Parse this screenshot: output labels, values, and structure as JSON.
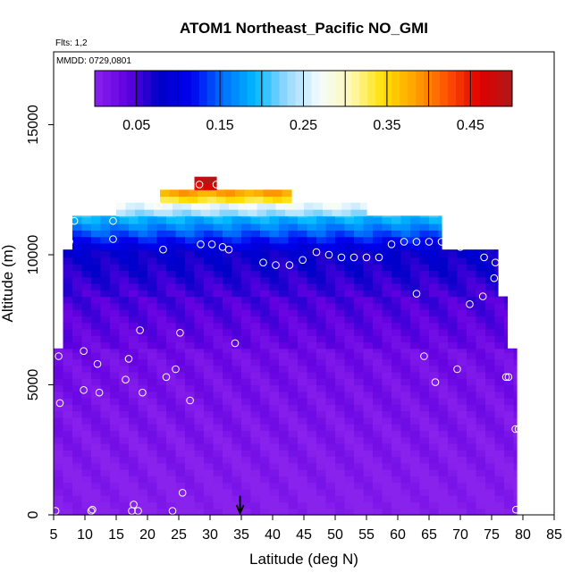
{
  "chart_data": {
    "type": "heatmap",
    "title": "ATOM1 Northeast_Pacific NO_GMI",
    "subtitle_flights": "Flts: 1,2",
    "subtitle_dates": "MMDD: 0729,0801",
    "xlabel": "Latitude (deg N)",
    "ylabel": "Altitude (m)",
    "xlim": [
      5,
      85
    ],
    "ylim": [
      0,
      17800
    ],
    "x_ticks": [
      5,
      10,
      15,
      20,
      25,
      30,
      35,
      40,
      45,
      50,
      55,
      60,
      65,
      70,
      75,
      80,
      85
    ],
    "y_ticks": [
      0,
      5000,
      10000,
      15000
    ],
    "colorbar": {
      "range": [
        0,
        0.5
      ],
      "tick_values": [
        0.05,
        0.15,
        0.25,
        0.35,
        0.45
      ],
      "tick_labels": [
        "0.05",
        "0.15",
        "0.25",
        "0.35",
        "0.45"
      ],
      "stops": [
        "#8a22ee",
        "#6200e0",
        "#0000c8",
        "#0000f0",
        "#0070ff",
        "#00b8ff",
        "#9ad8ff",
        "#f4fcff",
        "#fff8b0",
        "#ffe000",
        "#ffa000",
        "#ff5000",
        "#e00000",
        "#b01818"
      ]
    },
    "curtain_layers": [
      {
        "alt_range": [
          0,
          6400
        ],
        "lat_range": [
          5,
          79
        ],
        "value_bottom": 0.0,
        "value_top": 0.025
      },
      {
        "alt_range": [
          6400,
          8400
        ],
        "lat_range": [
          6.5,
          77.5
        ],
        "value_bottom": 0.03,
        "value_top": 0.05
      },
      {
        "alt_range": [
          8400,
          10200
        ],
        "lat_range": [
          6.5,
          76
        ],
        "value_bottom": 0.05,
        "value_top": 0.08
      },
      {
        "alt_range": [
          10200,
          11500
        ],
        "lat_range": [
          8,
          67
        ],
        "value_bottom": 0.09,
        "value_top": 0.2
      },
      {
        "alt_range": [
          11500,
          12000
        ],
        "lat_range": [
          15,
          55
        ],
        "value_bottom": 0.22,
        "value_top": 0.28
      },
      {
        "alt_range": [
          12000,
          12500
        ],
        "lat_range": [
          22,
          43
        ],
        "value_bottom": 0.32,
        "value_top": 0.4
      },
      {
        "alt_range": [
          12500,
          13000
        ],
        "lat_range": [
          27.5,
          31
        ],
        "value_bottom": 0.45,
        "value_top": 0.5
      }
    ],
    "flight_points": [
      {
        "lat": 5.3,
        "alt": 150
      },
      {
        "lat": 11,
        "alt": 150
      },
      {
        "lat": 11.2,
        "alt": 200
      },
      {
        "lat": 17.5,
        "alt": 150
      },
      {
        "lat": 17.8,
        "alt": 400
      },
      {
        "lat": 18.5,
        "alt": 150
      },
      {
        "lat": 24,
        "alt": 150
      },
      {
        "lat": 25.6,
        "alt": 850
      },
      {
        "lat": 6,
        "alt": 4300
      },
      {
        "lat": 9.8,
        "alt": 4800
      },
      {
        "lat": 12.3,
        "alt": 4700
      },
      {
        "lat": 19.2,
        "alt": 4700
      },
      {
        "lat": 16.5,
        "alt": 5200
      },
      {
        "lat": 23,
        "alt": 5300
      },
      {
        "lat": 24.5,
        "alt": 5600
      },
      {
        "lat": 26.8,
        "alt": 4400
      },
      {
        "lat": 5.8,
        "alt": 6100
      },
      {
        "lat": 9.8,
        "alt": 6300
      },
      {
        "lat": 12,
        "alt": 5800
      },
      {
        "lat": 17,
        "alt": 6000
      },
      {
        "lat": 18.8,
        "alt": 7100
      },
      {
        "lat": 25.2,
        "alt": 7000
      },
      {
        "lat": 34,
        "alt": 6600
      },
      {
        "lat": 64.2,
        "alt": 6100
      },
      {
        "lat": 66,
        "alt": 5100
      },
      {
        "lat": 69.5,
        "alt": 5600
      },
      {
        "lat": 77.3,
        "alt": 5300
      },
      {
        "lat": 77.7,
        "alt": 5300
      },
      {
        "lat": 78.8,
        "alt": 3300
      },
      {
        "lat": 79.3,
        "alt": 3300
      },
      {
        "lat": 78.9,
        "alt": 200
      },
      {
        "lat": 63,
        "alt": 8500
      },
      {
        "lat": 71.5,
        "alt": 8100
      },
      {
        "lat": 73.6,
        "alt": 8400
      },
      {
        "lat": 75.4,
        "alt": 9100
      },
      {
        "lat": 38.5,
        "alt": 9700
      },
      {
        "lat": 40.5,
        "alt": 9600
      },
      {
        "lat": 42.7,
        "alt": 9600
      },
      {
        "lat": 44.8,
        "alt": 9800
      },
      {
        "lat": 47,
        "alt": 10100
      },
      {
        "lat": 49,
        "alt": 10000
      },
      {
        "lat": 51,
        "alt": 9900
      },
      {
        "lat": 53,
        "alt": 9900
      },
      {
        "lat": 55,
        "alt": 9900
      },
      {
        "lat": 57,
        "alt": 9900
      },
      {
        "lat": 59,
        "alt": 10400
      },
      {
        "lat": 61,
        "alt": 10500
      },
      {
        "lat": 63,
        "alt": 10500
      },
      {
        "lat": 65,
        "alt": 10500
      },
      {
        "lat": 67,
        "alt": 10500
      },
      {
        "lat": 69,
        "alt": 10500
      },
      {
        "lat": 70,
        "alt": 10300
      },
      {
        "lat": 73.8,
        "alt": 9900
      },
      {
        "lat": 75.6,
        "alt": 9700
      },
      {
        "lat": 67.7,
        "alt": 11300
      },
      {
        "lat": 7.5,
        "alt": 10500
      },
      {
        "lat": 8.3,
        "alt": 11300
      },
      {
        "lat": 14.5,
        "alt": 10600
      },
      {
        "lat": 14.5,
        "alt": 11300
      },
      {
        "lat": 21.7,
        "alt": 11900
      },
      {
        "lat": 22.5,
        "alt": 10200
      },
      {
        "lat": 28.5,
        "alt": 10400
      },
      {
        "lat": 30.3,
        "alt": 10400
      },
      {
        "lat": 32,
        "alt": 10300
      },
      {
        "lat": 33,
        "alt": 10200
      },
      {
        "lat": 28.3,
        "alt": 12700
      },
      {
        "lat": 31,
        "alt": 12700
      }
    ],
    "arrow_marker": {
      "lat": 34.8,
      "alt_top": 700
    }
  }
}
